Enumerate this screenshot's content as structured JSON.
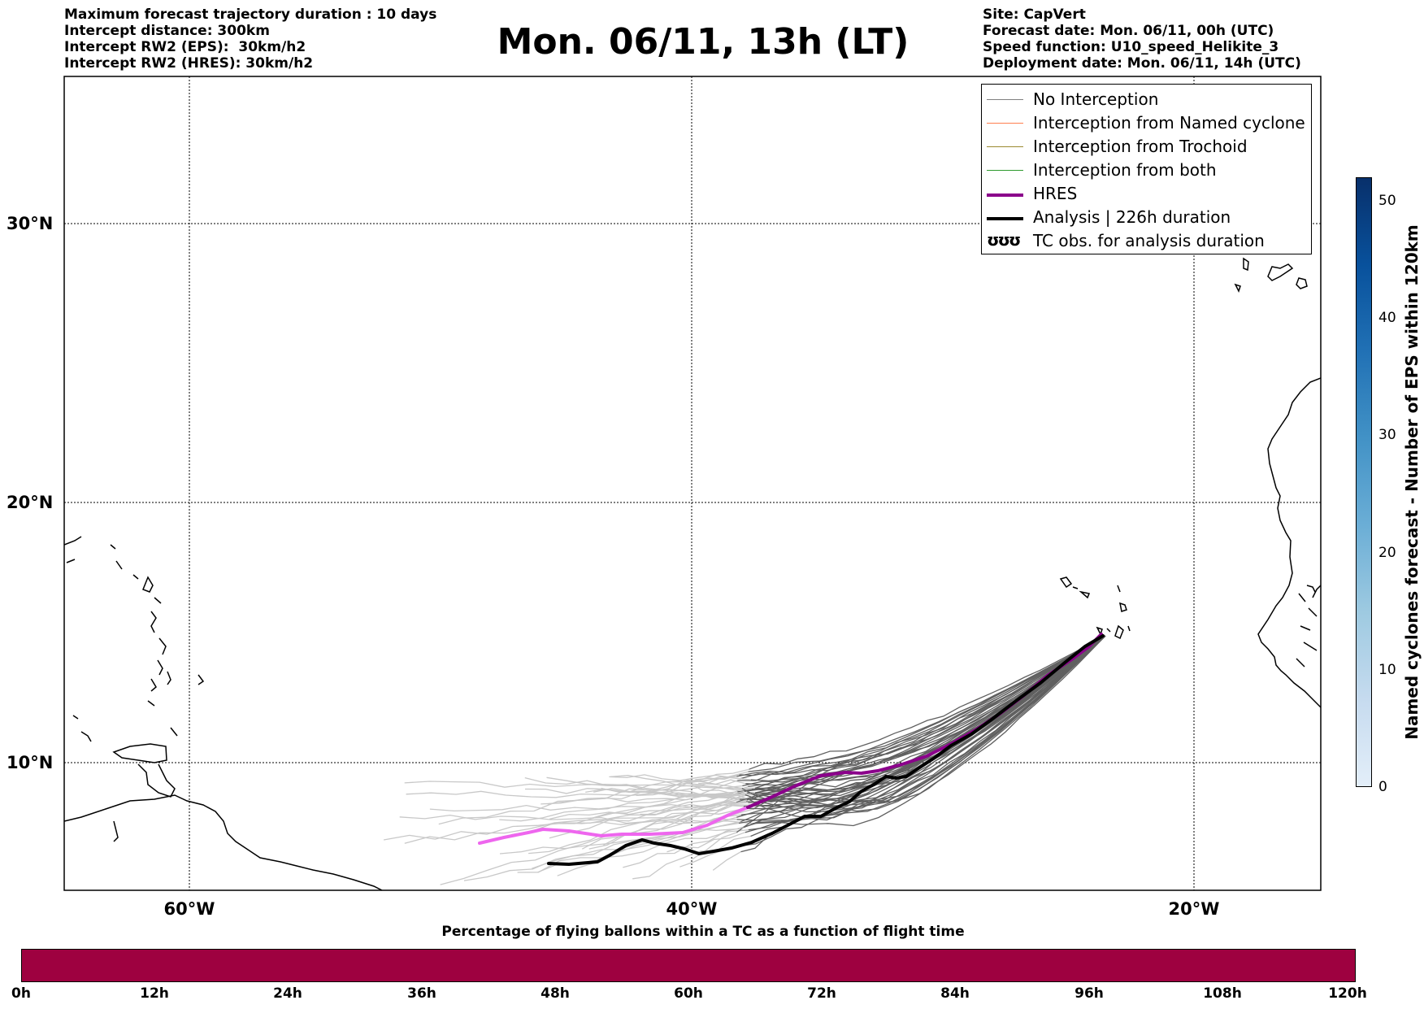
{
  "header": {
    "left": [
      "Maximum forecast trajectory duration : 10 days",
      "Intercept distance: 300km",
      "Intercept RW2 (EPS):  30km/h2",
      "Intercept RW2 (HRES): 30km/h2"
    ],
    "title": "Mon. 06/11, 13h (LT)",
    "right": [
      "Site: CapVert",
      "Forecast date: Mon. 06/11, 00h (UTC)",
      "Speed function: U10_speed_Helikite_3",
      "Deployment date: Mon. 06/11, 14h (UTC)"
    ]
  },
  "map": {
    "lon_labels": [
      "60°W",
      "40°W",
      "20°W"
    ],
    "lat_labels": [
      "30°N",
      "20°N",
      "10°N"
    ],
    "gridlines": true
  },
  "legend": {
    "items": [
      {
        "label": "No Interception",
        "color": "#808080",
        "style": "thin"
      },
      {
        "label": "Interception from Named cyclone",
        "color": "#ff7f50",
        "style": "thin"
      },
      {
        "label": "Interception from Trochoid",
        "color": "#9b8a30",
        "style": "thin"
      },
      {
        "label": "Interception from both",
        "color": "#2e9b2e",
        "style": "thin"
      },
      {
        "label": "HRES",
        "color": "#8b008b",
        "style": "thick"
      },
      {
        "label": "Analysis | 226h duration",
        "color": "#000000",
        "style": "thick"
      },
      {
        "label": "TC obs. for analysis duration",
        "color": "#000000",
        "style": "glyph",
        "glyph": "ʊʊʊ"
      }
    ]
  },
  "colorbar_bottom": {
    "title": "Percentage of flying ballons within a TC as a function of flight time",
    "ticks": [
      "0h",
      "12h",
      "24h",
      "36h",
      "48h",
      "60h",
      "72h",
      "84h",
      "96h",
      "108h",
      "120h"
    ],
    "color": "#9e0140"
  },
  "colorbar_right": {
    "label": "Named cyclones forecast - Number of EPS within 120km",
    "ticks": [
      "0",
      "10",
      "20",
      "30",
      "40",
      "50"
    ],
    "range": [
      0,
      52
    ]
  },
  "colors": {
    "eps_early": "#c8c8c8",
    "eps_late": "#606060",
    "hres_early": "#ee66ee",
    "hres_late": "#8b008b",
    "analysis": "#000000"
  }
}
